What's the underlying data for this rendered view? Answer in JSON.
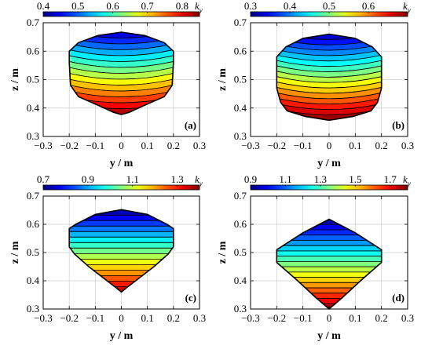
{
  "chart_data": [
    {
      "type": "heatmap",
      "panel_label": "(a)",
      "colorbar": {
        "min": 0.4,
        "max": 0.85,
        "ticks": [
          "0.4",
          "0.5",
          "0.6",
          "0.7",
          "0.8"
        ],
        "label": "k",
        "label_sub": "y"
      },
      "xlabel": "y / m",
      "ylabel": "z / m",
      "xlim": [
        -0.3,
        0.3
      ],
      "ylim": [
        0.3,
        0.7
      ],
      "xticks": [
        "−0.3",
        "−0.2",
        "−0.1",
        "0",
        "0.1",
        "0.2",
        "0.3"
      ],
      "yticks": [
        "0.3",
        "0.4",
        "0.5",
        "0.6",
        "0.7"
      ],
      "grid": true,
      "region": {
        "top": 0.667,
        "bottom": 0.377,
        "right_boundary": [
          [
            0.667,
            0
          ],
          [
            0.655,
            0.09
          ],
          [
            0.63,
            0.165
          ],
          [
            0.6,
            0.2
          ],
          [
            0.56,
            0.2
          ],
          [
            0.48,
            0.195
          ],
          [
            0.44,
            0.165
          ],
          [
            0.41,
            0.09
          ],
          [
            0.385,
            0.03
          ],
          [
            0.377,
            0
          ]
        ]
      },
      "field": {
        "value_top": 0.43,
        "value_bottom": 0.84,
        "n_levels": 14,
        "edge_rise": 0.035
      }
    },
    {
      "type": "heatmap",
      "panel_label": "(b)",
      "colorbar": {
        "min": 0.3,
        "max": 0.7,
        "ticks": [
          "0.3",
          "0.4",
          "0.5",
          "0.6"
        ],
        "label": "k",
        "label_sub": "y"
      },
      "xlabel": "y / m",
      "ylabel": "z / m",
      "xlim": [
        -0.3,
        0.3
      ],
      "ylim": [
        0.3,
        0.7
      ],
      "xticks": [
        "−0.3",
        "−0.2",
        "−0.1",
        "0",
        "0.1",
        "0.2",
        "0.3"
      ],
      "yticks": [
        "0.3",
        "0.4",
        "0.5",
        "0.6",
        "0.7"
      ],
      "grid": true,
      "region": {
        "top": 0.66,
        "bottom": 0.357,
        "right_boundary": [
          [
            0.66,
            0
          ],
          [
            0.645,
            0.1
          ],
          [
            0.615,
            0.165
          ],
          [
            0.58,
            0.2
          ],
          [
            0.47,
            0.2
          ],
          [
            0.42,
            0.185
          ],
          [
            0.39,
            0.16
          ],
          [
            0.37,
            0.09
          ],
          [
            0.357,
            0
          ]
        ]
      },
      "field": {
        "value_top": 0.32,
        "value_bottom": 0.7,
        "n_levels": 16,
        "edge_rise": 0.035
      }
    },
    {
      "type": "heatmap",
      "panel_label": "(c)",
      "colorbar": {
        "min": 0.7,
        "max": 1.4,
        "ticks": [
          "0.7",
          "0.9",
          "1.1",
          "1.3"
        ],
        "label": "k",
        "label_sub": "y"
      },
      "xlabel": "y / m",
      "ylabel": "z / m",
      "xlim": [
        -0.3,
        0.3
      ],
      "ylim": [
        0.3,
        0.7
      ],
      "xticks": [
        "−0.3",
        "−0.2",
        "−0.1",
        "0",
        "0.1",
        "0.2",
        "0.3"
      ],
      "yticks": [
        "0.3",
        "0.4",
        "0.5",
        "0.6",
        "0.7"
      ],
      "grid": true,
      "region": {
        "top": 0.652,
        "bottom": 0.36,
        "right_boundary": [
          [
            0.652,
            0
          ],
          [
            0.635,
            0.1
          ],
          [
            0.6,
            0.175
          ],
          [
            0.585,
            0.2
          ],
          [
            0.52,
            0.2
          ],
          [
            0.495,
            0.18
          ],
          [
            0.45,
            0.125
          ],
          [
            0.4,
            0.055
          ],
          [
            0.375,
            0.02
          ],
          [
            0.36,
            0
          ]
        ]
      },
      "field": {
        "value_top": 0.72,
        "value_bottom": 1.36,
        "n_levels": 15,
        "edge_rise": 0.0
      }
    },
    {
      "type": "heatmap",
      "panel_label": "(d)",
      "colorbar": {
        "min": 0.9,
        "max": 1.8,
        "ticks": [
          "0.9",
          "1.1",
          "1.3",
          "1.5",
          "1.7"
        ],
        "label": "k",
        "label_sub": "y"
      },
      "xlabel": "y / m",
      "ylabel": "z / m",
      "xlim": [
        -0.3,
        0.3
      ],
      "ylim": [
        0.3,
        0.7
      ],
      "xticks": [
        "−0.3",
        "−0.2",
        "−0.1",
        "0",
        "0.1",
        "0.2",
        "0.3"
      ],
      "yticks": [
        "0.3",
        "0.4",
        "0.5",
        "0.6",
        "0.7"
      ],
      "grid": true,
      "region": {
        "top": 0.618,
        "bottom": 0.3,
        "right_boundary": [
          [
            0.618,
            0
          ],
          [
            0.57,
            0.1
          ],
          [
            0.51,
            0.2
          ],
          [
            0.465,
            0.2
          ],
          [
            0.4,
            0.12
          ],
          [
            0.34,
            0.05
          ],
          [
            0.3,
            0
          ]
        ]
      },
      "field": {
        "value_top": 0.92,
        "value_bottom": 1.78,
        "n_levels": 17,
        "edge_rise": 0.0
      }
    }
  ]
}
